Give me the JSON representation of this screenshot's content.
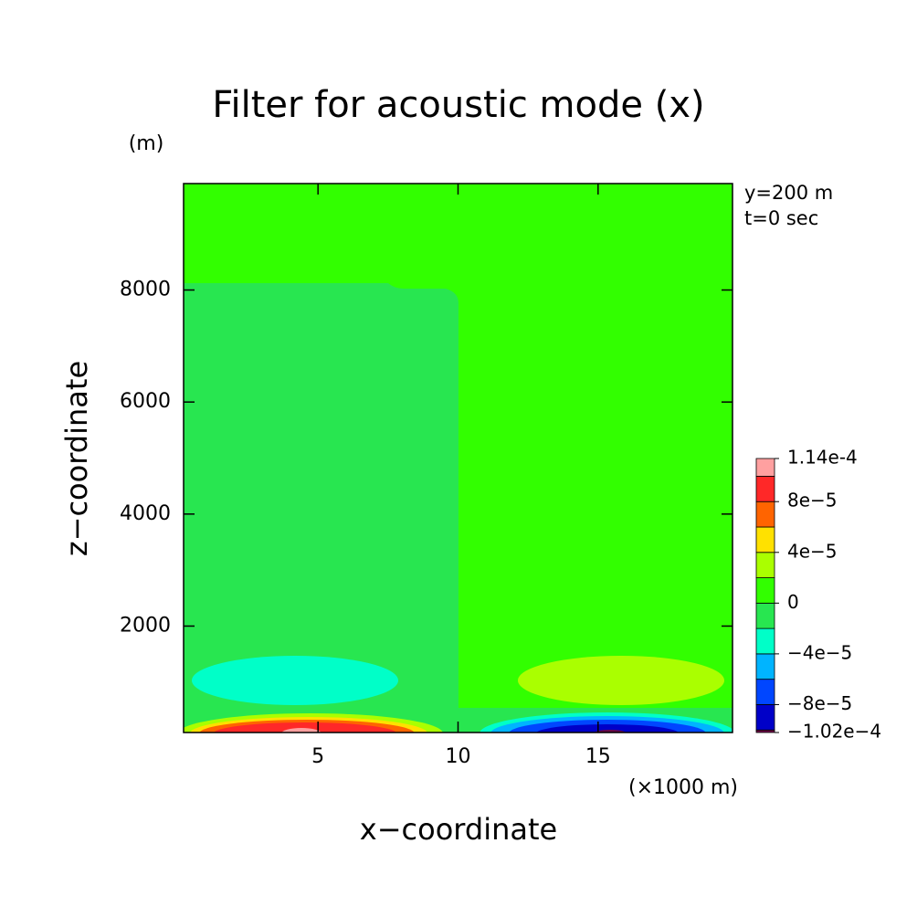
{
  "chart_data": {
    "type": "contour",
    "title": "Filter for acoustic mode (x)",
    "x_label": "x−coordinate",
    "y_label": "z−coordinate",
    "x_unit": "(×1000 m)",
    "y_unit": "(m)",
    "annotations": [
      "y=200 m",
      "t=0 sec"
    ],
    "xlim": [
      0.2,
      19.8
    ],
    "ylim": [
      100,
      9900
    ],
    "xticks": [
      5,
      10,
      15
    ],
    "yticks": [
      2000,
      4000,
      6000,
      8000
    ],
    "levels": [
      -0.000102,
      -0.0001,
      -8e-05,
      -6e-05,
      -4e-05,
      -2e-05,
      0,
      2e-05,
      4e-05,
      6e-05,
      8e-05,
      0.0001,
      0.000114
    ],
    "colors": [
      "#6a0a46",
      "#0000c8",
      "#0046ff",
      "#00b4ff",
      "#00ffc8",
      "#28e650",
      "#32ff00",
      "#aaff00",
      "#ffe100",
      "#ff6400",
      "#ff2828",
      "#ffa0a0"
    ],
    "colorbar_ticks": [
      {
        "value": 0.000114,
        "label": "1.14e-4"
      },
      {
        "value": 8e-05,
        "label": "8e−5"
      },
      {
        "value": 4e-05,
        "label": "4e−5"
      },
      0,
      {
        "value": -4e-05,
        "label": "−4e−5"
      },
      {
        "value": -8e-05,
        "label": "−8e−5"
      },
      {
        "value": -0.000102,
        "label": "−1.02e−4"
      }
    ]
  }
}
